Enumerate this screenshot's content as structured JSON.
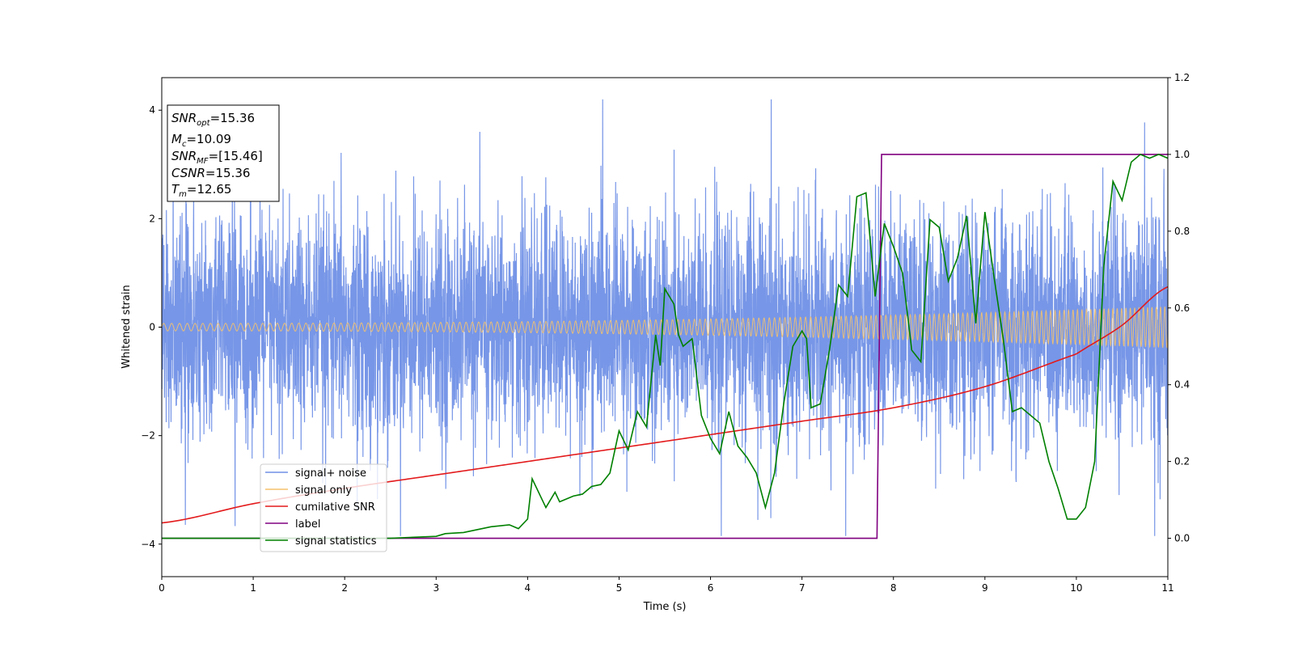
{
  "chart_data": {
    "type": "line",
    "title": "",
    "xlabel": "Time (s)",
    "ylabel": "Whitened strain",
    "xlim": [
      0,
      11
    ],
    "ylim": [
      -4.6,
      4.6
    ],
    "y2lim": [
      -0.1,
      1.2
    ],
    "xticks": [
      "0",
      "1",
      "2",
      "3",
      "4",
      "5",
      "6",
      "7",
      "8",
      "9",
      "10",
      "11"
    ],
    "yticks": [
      "-4",
      "-2",
      "0",
      "2",
      "4"
    ],
    "y2ticks": [
      "0.0",
      "0.2",
      "0.4",
      "0.6",
      "0.8",
      "1.0",
      "1.2"
    ],
    "grid": false,
    "legend_position": "lower-left",
    "series": [
      {
        "name": "signal+ noise",
        "color": "#7090e6",
        "axis": "left",
        "noise_std": 1.0,
        "amplitude_start": 0.08,
        "amplitude_end": 0.38
      },
      {
        "name": "signal only",
        "color": "#f5c26b",
        "axis": "left",
        "amplitude_start": 0.07,
        "amplitude_end": 0.38
      },
      {
        "name": "cumilative SNR",
        "color": "#e31a1c",
        "axis": "right",
        "x": [
          0,
          1,
          2,
          3,
          4,
          5,
          6,
          7,
          8,
          9,
          10,
          10.5,
          11
        ],
        "y": [
          0.04,
          0.09,
          0.13,
          0.165,
          0.2,
          0.235,
          0.27,
          0.305,
          0.34,
          0.395,
          0.48,
          0.555,
          0.655
        ]
      },
      {
        "name": "label",
        "color": "#800080",
        "axis": "right",
        "x": [
          0,
          7.82,
          7.87,
          11
        ],
        "y": [
          0,
          0,
          1,
          1
        ]
      },
      {
        "name": "signal statistics",
        "color": "#008000",
        "axis": "right",
        "x": [
          0,
          2.5,
          3.0,
          3.1,
          3.3,
          3.5,
          3.6,
          3.8,
          3.9,
          4.0,
          4.05,
          4.2,
          4.3,
          4.35,
          4.4,
          4.5,
          4.6,
          4.7,
          4.8,
          4.9,
          5.0,
          5.1,
          5.2,
          5.3,
          5.4,
          5.45,
          5.5,
          5.6,
          5.65,
          5.7,
          5.8,
          5.9,
          6.0,
          6.1,
          6.2,
          6.3,
          6.4,
          6.5,
          6.6,
          6.7,
          6.8,
          6.9,
          7.0,
          7.05,
          7.1,
          7.2,
          7.3,
          7.4,
          7.5,
          7.6,
          7.7,
          7.8,
          7.9,
          8.0,
          8.1,
          8.2,
          8.3,
          8.4,
          8.5,
          8.6,
          8.7,
          8.8,
          8.9,
          9.0,
          9.1,
          9.2,
          9.3,
          9.4,
          9.5,
          9.6,
          9.7,
          9.8,
          9.9,
          10.0,
          10.1,
          10.2,
          10.3,
          10.4,
          10.5,
          10.6,
          10.7,
          10.8,
          10.9,
          11.0
        ],
        "y": [
          0,
          0.0,
          0.005,
          0.012,
          0.015,
          0.025,
          0.03,
          0.035,
          0.025,
          0.05,
          0.155,
          0.08,
          0.12,
          0.095,
          0.1,
          0.11,
          0.115,
          0.135,
          0.14,
          0.17,
          0.28,
          0.23,
          0.33,
          0.29,
          0.53,
          0.45,
          0.65,
          0.61,
          0.53,
          0.5,
          0.52,
          0.32,
          0.26,
          0.22,
          0.33,
          0.24,
          0.21,
          0.17,
          0.08,
          0.17,
          0.35,
          0.5,
          0.54,
          0.52,
          0.34,
          0.35,
          0.49,
          0.66,
          0.63,
          0.89,
          0.9,
          0.63,
          0.82,
          0.76,
          0.69,
          0.49,
          0.46,
          0.83,
          0.81,
          0.67,
          0.73,
          0.84,
          0.56,
          0.85,
          0.68,
          0.52,
          0.33,
          0.34,
          0.32,
          0.3,
          0.2,
          0.13,
          0.05,
          0.05,
          0.08,
          0.2,
          0.71,
          0.93,
          0.88,
          0.98,
          1.0,
          0.99,
          1.0,
          0.99
        ]
      }
    ],
    "annotations": {
      "snr_opt_value": "=15.36",
      "mc_value": "=10.09",
      "snr_mf_value": "=[15.46]",
      "csnr_value": "=15.36",
      "tm_value": "=12.65"
    }
  }
}
